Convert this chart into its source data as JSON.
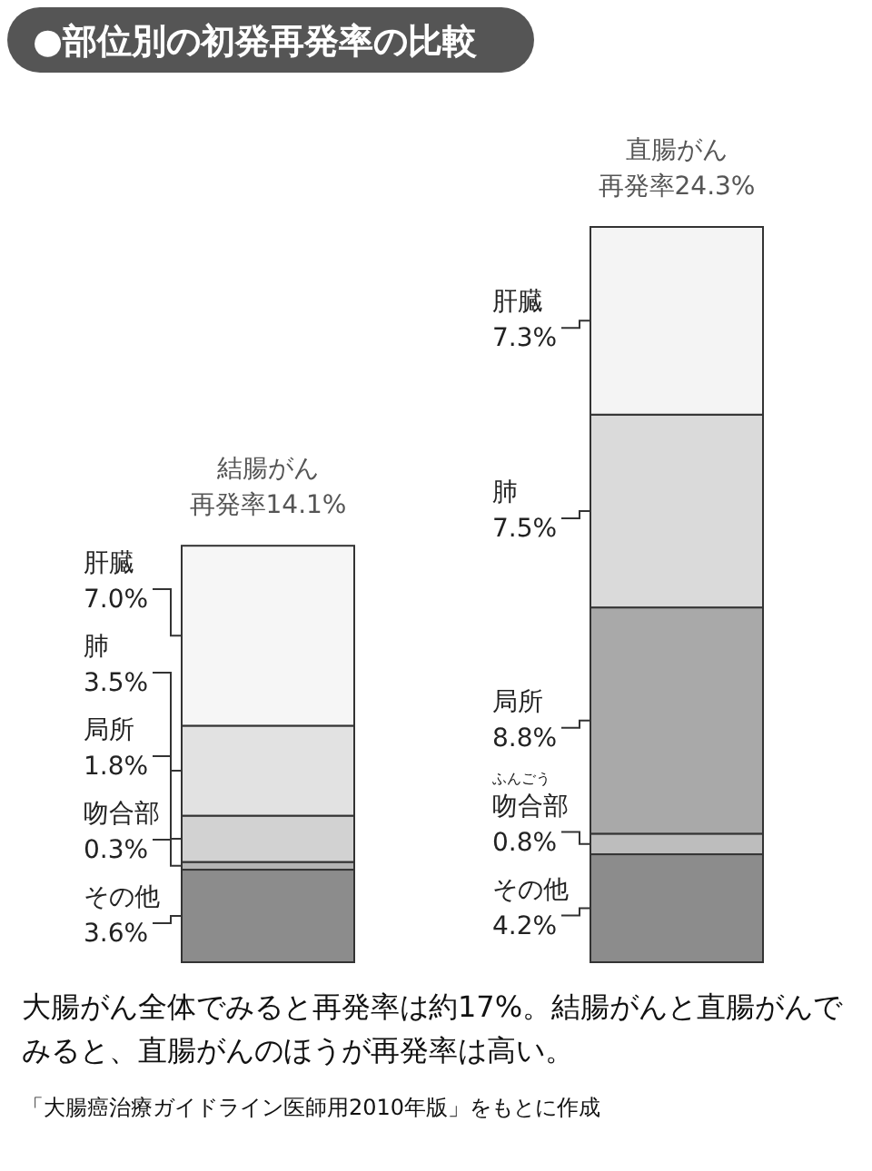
{
  "chart_data": {
    "type": "bar",
    "stacked": true,
    "title": "●部位別の初発再発率の比較",
    "categories": [
      "結腸がん",
      "直腸がん"
    ],
    "totals": [
      "再発率14.1%",
      "再発率24.3%"
    ],
    "series": [
      {
        "name": "その他",
        "values": [
          3.6,
          4.2
        ],
        "value_labels": [
          "3.6%",
          "4.2%"
        ],
        "colors": [
          "#8c8c8c",
          "#8c8c8c"
        ]
      },
      {
        "name": "吻合部",
        "values": [
          0.3,
          0.8
        ],
        "value_labels": [
          "0.3%",
          "0.8%"
        ],
        "colors": [
          "#b4b4b4",
          "#bdbdbd"
        ]
      },
      {
        "name": "局所",
        "values": [
          1.8,
          8.8
        ],
        "value_labels": [
          "1.8%",
          "8.8%"
        ],
        "colors": [
          "#d2d2d2",
          "#a9a9a9"
        ]
      },
      {
        "name": "肺",
        "values": [
          3.5,
          7.5
        ],
        "value_labels": [
          "3.5%",
          "7.5%"
        ],
        "colors": [
          "#e2e2e2",
          "#dadada"
        ]
      },
      {
        "name": "肝臓",
        "values": [
          7.0,
          7.3
        ],
        "value_labels": [
          "7.0%",
          "7.3%"
        ],
        "colors": [
          "#f6f6f6",
          "#f4f4f4"
        ]
      }
    ],
    "annotations": [
      "ふんごう",
      "大腸がん全体でみると再発率は約17%。結腸がんと直腸がんでみると、直腸がんのほうが再発率は高い。",
      "「大腸癌治療ガイドライン医師用2010年版」をもとに作成"
    ]
  }
}
